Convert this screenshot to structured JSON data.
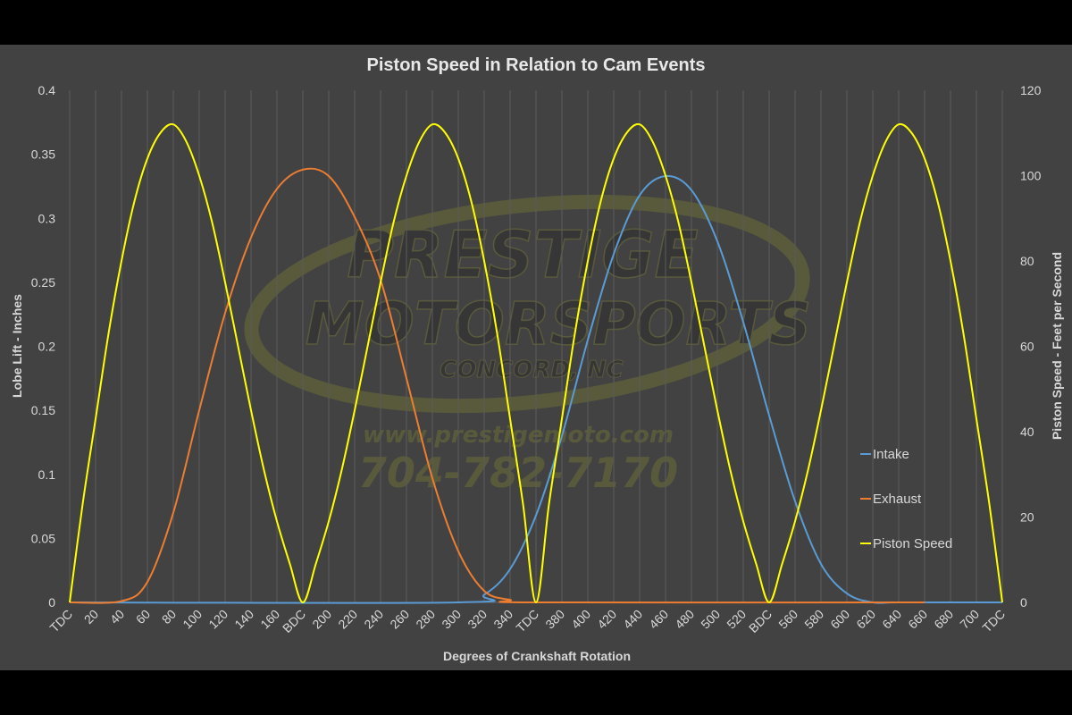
{
  "chart_data": {
    "type": "line",
    "title": "Piston Speed in Relation to Cam Events",
    "xlabel": "Degrees of Crankshaft Rotation",
    "ylabel": "Lobe Lift - Inches",
    "y2label": "Piston Speed - Feet per Second",
    "xlim": [
      0,
      720
    ],
    "ylim": [
      0,
      0.4
    ],
    "y2lim": [
      0,
      120
    ],
    "x_ticks": [
      "TDC",
      "20",
      "40",
      "60",
      "80",
      "100",
      "120",
      "140",
      "160",
      "BDC",
      "200",
      "220",
      "240",
      "260",
      "280",
      "300",
      "320",
      "340",
      "TDC",
      "380",
      "400",
      "420",
      "440",
      "460",
      "480",
      "500",
      "520",
      "BDC",
      "560",
      "580",
      "600",
      "620",
      "640",
      "660",
      "680",
      "700",
      "TDC"
    ],
    "y_ticks": [
      "0",
      "0.05",
      "0.1",
      "0.15",
      "0.2",
      "0.25",
      "0.3",
      "0.35",
      "0.4"
    ],
    "y2_ticks": [
      "0",
      "20",
      "40",
      "60",
      "80",
      "100",
      "120"
    ],
    "legend_position": "right",
    "gridlines": "vertical",
    "series": [
      {
        "name": "Intake",
        "axis": "left",
        "color": "#5b9bd5",
        "x": [
          0,
          300,
          320,
          340,
          360,
          380,
          400,
          420,
          440,
          460,
          480,
          500,
          520,
          540,
          560,
          580,
          600,
          620,
          640,
          720
        ],
        "values": [
          0,
          0,
          0.006,
          0.026,
          0.068,
          0.13,
          0.205,
          0.272,
          0.318,
          0.333,
          0.322,
          0.282,
          0.219,
          0.146,
          0.079,
          0.03,
          0.007,
          0,
          0,
          0
        ]
      },
      {
        "name": "Exhaust",
        "axis": "left",
        "color": "#ed7d31",
        "x": [
          0,
          40,
          60,
          80,
          100,
          120,
          140,
          160,
          180,
          200,
          220,
          240,
          260,
          280,
          300,
          320,
          340,
          360,
          660
        ],
        "values": [
          0,
          0.001,
          0.016,
          0.07,
          0.15,
          0.226,
          0.285,
          0.323,
          0.338,
          0.333,
          0.301,
          0.252,
          0.175,
          0.097,
          0.04,
          0.009,
          0.002,
          0,
          0
        ]
      },
      {
        "name": "Piston Speed",
        "axis": "right",
        "color": "#ffff00",
        "x": [
          0,
          10,
          20,
          30,
          40,
          50,
          60,
          70,
          80,
          90,
          100,
          110,
          120,
          130,
          140,
          150,
          160,
          170,
          180,
          190,
          200,
          210,
          220,
          230,
          240,
          250,
          260,
          270,
          280,
          290,
          300,
          310,
          320,
          330,
          340,
          350,
          360,
          370,
          380,
          390,
          400,
          410,
          420,
          430,
          440,
          450,
          460,
          470,
          480,
          490,
          500,
          510,
          520,
          530,
          540,
          550,
          560,
          570,
          580,
          590,
          600,
          610,
          620,
          630,
          640,
          650,
          660,
          670,
          680,
          690,
          700,
          710,
          720
        ],
        "values": [
          0,
          23,
          43,
          63,
          80,
          94,
          104,
          110,
          112,
          108,
          100,
          89,
          75,
          60,
          45,
          31,
          19,
          9,
          0,
          9,
          19,
          31,
          45,
          60,
          75,
          89,
          100,
          108,
          112,
          110,
          104,
          94,
          80,
          63,
          43,
          23,
          0,
          23,
          43,
          63,
          80,
          94,
          104,
          110,
          112,
          108,
          100,
          89,
          75,
          60,
          45,
          31,
          19,
          9,
          0,
          9,
          19,
          31,
          45,
          60,
          75,
          89,
          100,
          108,
          112,
          110,
          104,
          94,
          80,
          63,
          43,
          23,
          0
        ]
      }
    ]
  },
  "watermark": {
    "line1": "PRESTIGE",
    "line2": "MOTORSPORTS",
    "line3": "CONCORD, NC",
    "url": "www.prestigemoto.com",
    "phone": "704-782-7170"
  }
}
